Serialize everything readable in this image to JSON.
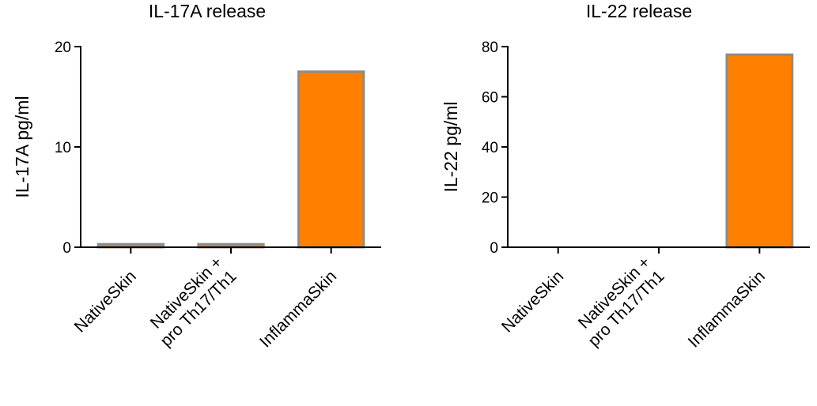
{
  "chart_data": [
    {
      "type": "bar",
      "title": "IL-17A release",
      "xlabel": "",
      "ylabel": "IL-17A pg/ml",
      "ylim": [
        0,
        20
      ],
      "yticks": [
        0,
        10,
        20
      ],
      "categories": [
        [
          "NativeSkin"
        ],
        [
          "NativeSkin +",
          "pro Th17/Th1"
        ],
        [
          "InflammaSkin"
        ]
      ],
      "values": [
        0.3,
        0.3,
        17.5
      ],
      "bar_colors": [
        "#ff8000",
        "#ff8000",
        "#ff8000"
      ],
      "bar_edge_color": "#8c8c8c",
      "grid": false,
      "legend": "none"
    },
    {
      "type": "bar",
      "title": "IL-22 release",
      "xlabel": "",
      "ylabel": "IL-22 pg/ml",
      "ylim": [
        0,
        80
      ],
      "yticks": [
        0,
        20,
        40,
        60,
        80
      ],
      "categories": [
        [
          "NativeSkin"
        ],
        [
          "NativeSkin +",
          "pro Th17/Th1"
        ],
        [
          "InflammaSkin"
        ]
      ],
      "values": [
        0,
        0,
        76.8
      ],
      "bar_colors": [
        "#ff8000",
        "#ff8000",
        "#ff8000"
      ],
      "bar_edge_color": "#8c8c8c",
      "grid": false,
      "legend": "none"
    }
  ]
}
